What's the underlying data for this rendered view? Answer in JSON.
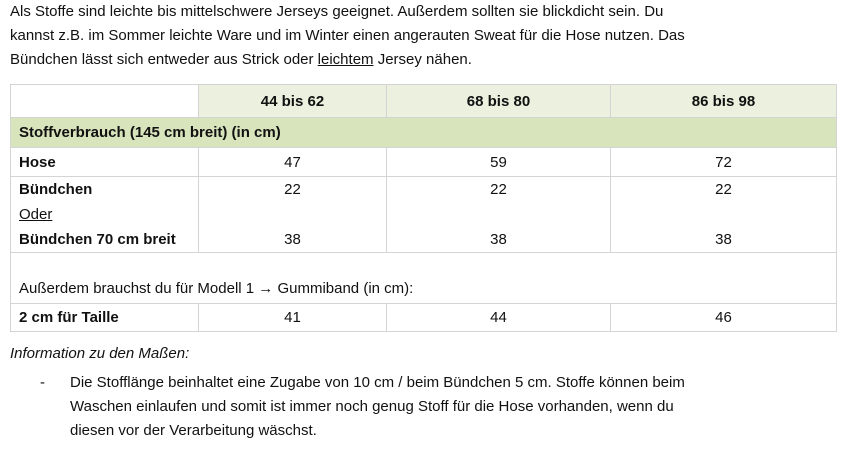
{
  "intro": {
    "lines": [
      "Als Stoffe sind leichte bis mittelschwere Jerseys geeignet. Außerdem sollten sie blickdicht sein. Du",
      "kannst z.B. im Sommer leichte Ware und im Winter einen angerauten Sweat für die Hose nutzen. Das"
    ],
    "last_line": {
      "before": "Bündchen lässt sich entweder aus Strick oder",
      "underlined": "leichtem",
      "after": "Jersey nähen."
    }
  },
  "table": {
    "columns": [
      "44 bis 62",
      "68 bis 80",
      "86 bis 98"
    ],
    "section": "Stoffverbrauch (145 cm breit) (in cm)",
    "hose": {
      "label": "Hose",
      "values": [
        "47",
        "59",
        "72"
      ]
    },
    "buendchen": {
      "label": "Bündchen",
      "or": "Oder",
      "label_wide": "Bündchen 70 cm breit",
      "values": [
        "22",
        "22",
        "22"
      ],
      "values_wide": [
        "38",
        "38",
        "38"
      ]
    },
    "note": "Außerdem brauchst du für Modell 1 → Gummiband (in cm):",
    "taille": {
      "label": "2 cm für Taille",
      "values": [
        "41",
        "44",
        "46"
      ]
    }
  },
  "info": {
    "title": "Information zu den Maßen:",
    "marker": "-",
    "lines": [
      "Die Stofflänge beinhaltet eine Zugabe von 10 cm / beim Bündchen 5 cm. Stoffe können beim",
      "Waschen einlaufen und somit ist immer noch genug Stoff für die Hose vorhanden, wenn du",
      "diesen vor der Verarbeitung wäschst."
    ]
  }
}
